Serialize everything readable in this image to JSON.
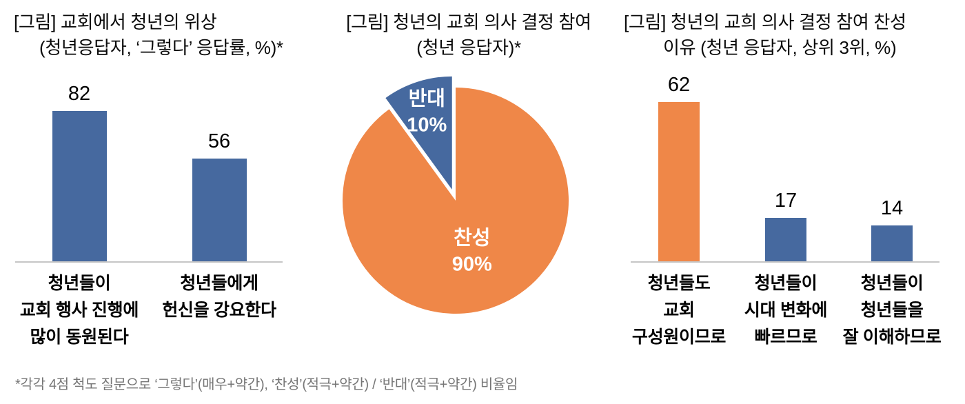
{
  "colors": {
    "blue": "#46699F",
    "orange": "#EF8748",
    "axis": "#C6C6C6",
    "footnote_gray": "#767676",
    "pie_label": "#FFFFFF"
  },
  "footnote": {
    "text": "*각각 4점 척도 질문으로 ‘그렇다’(매우+약간), ‘찬성’(적극+약간) / ‘반대’(적극+약간) 비율임",
    "color": "#767676"
  },
  "chart_data": [
    {
      "type": "bar",
      "title_line1": "[그림] 교회에서 청년의 위상",
      "title_line2": "(청년응답자, ‘그렇다’ 응답률, %)*",
      "categories": [
        [
          "청년들이",
          "교회 행사 진행에",
          "많이 동원된다"
        ],
        [
          "청년들에게",
          "헌신을 강요한다"
        ]
      ],
      "values": [
        82,
        56
      ],
      "bar_colors": [
        "#46699F",
        "#46699F"
      ],
      "unit": "%",
      "ylim": [
        0,
        100
      ],
      "grid": false,
      "legend": "none",
      "value_labels": true
    },
    {
      "type": "pie",
      "title_line1": "[그림] 청년의 교회 의사 결정 참여",
      "title_line2": "(청년 응답자)*",
      "slices": [
        {
          "label": "찬성",
          "value": 90,
          "unit": "%",
          "color": "#EF8748",
          "exploded": false
        },
        {
          "label": "반대",
          "value": 10,
          "unit": "%",
          "color": "#46699F",
          "exploded": true
        }
      ],
      "start_angle_deg": 0,
      "direction": "clockwise",
      "label_color": "#FFFFFF",
      "legend": "none"
    },
    {
      "type": "bar",
      "title_line1": "[그림] 청년의 교희 의사 결정 참여 찬성",
      "title_line2": "이유 (청년 응답자, 상위 3위, %)",
      "categories": [
        [
          "청년들도",
          "교회",
          "구성원이므로"
        ],
        [
          "청년들이",
          "시대 변화에",
          "빠르므로"
        ],
        [
          "청년들이",
          "청년들을",
          "잘 이해하므로"
        ]
      ],
      "values": [
        62,
        17,
        14
      ],
      "bar_colors": [
        "#EF8748",
        "#46699F",
        "#46699F"
      ],
      "unit": "%",
      "ylim": [
        0,
        70
      ],
      "grid": false,
      "legend": "none",
      "value_labels": true
    }
  ]
}
